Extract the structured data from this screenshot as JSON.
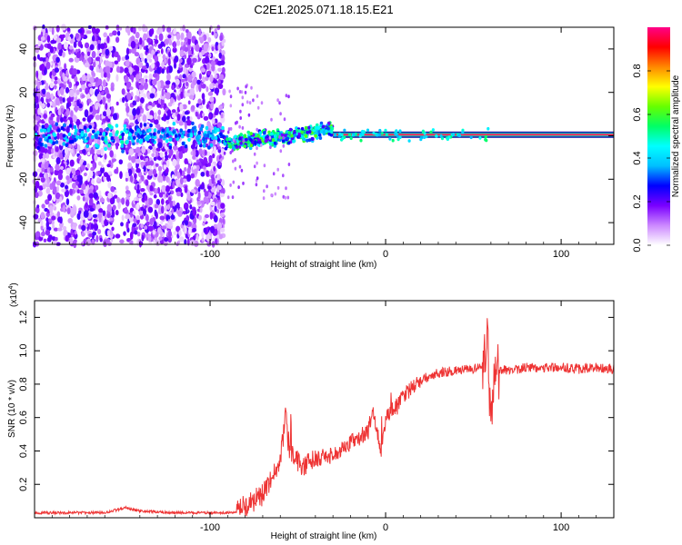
{
  "title": "C2E1.2025.071.18.15.E21",
  "chart_data": [
    {
      "type": "heatmap",
      "xlabel": "Height of straight line (km)",
      "ylabel": "Frequency (Hz)",
      "xlim": [
        -200,
        130
      ],
      "ylim": [
        -50,
        50
      ],
      "xticks": [
        -100,
        0,
        100
      ],
      "yticks": [
        -40,
        -20,
        0,
        20,
        40
      ],
      "colorbar": {
        "label": "Normalized spectral amplitude",
        "range": [
          0,
          1
        ],
        "ticks": [
          0.0,
          0.2,
          0.4,
          0.6,
          0.8
        ],
        "colors": [
          "#ffffff",
          "#cc88ff",
          "#7a00ff",
          "#0000ff",
          "#00bfff",
          "#00ffff",
          "#00ff66",
          "#66ff00",
          "#ffff00",
          "#ff8800",
          "#ff0000",
          "#ff0088"
        ]
      },
      "regions": [
        {
          "x": [
            -200,
            -92
          ],
          "amplitude_level": 0.15,
          "note": "noise"
        },
        {
          "x": [
            -92,
            -30
          ],
          "freq_hz": [
            -4,
            3
          ],
          "amplitude_level": 0.45
        },
        {
          "x": [
            -30,
            130
          ],
          "freq_hz": 0.5,
          "amplitude_level": 0.85
        }
      ]
    },
    {
      "type": "line",
      "xlabel": "Height of straight line (km)",
      "ylabel": "SNR (10 * v/v)",
      "y_multiplier": "(x10",
      "y_multiplier_exp": "4",
      "xlim": [
        -200,
        130
      ],
      "ylim": [
        0,
        1.3
      ],
      "xticks": [
        -100,
        0,
        100
      ],
      "yticks": [
        0.2,
        0.4,
        0.6,
        0.8,
        1.0,
        1.2
      ],
      "series": [
        {
          "color": "#ee3333",
          "x": [
            -200,
            -160,
            -148,
            -140,
            -120,
            -100,
            -85,
            -80,
            -75,
            -70,
            -65,
            -60,
            -57,
            -55,
            -50,
            -45,
            -40,
            -35,
            -30,
            -25,
            -20,
            -15,
            -10,
            -7,
            -5,
            -3,
            0,
            5,
            10,
            15,
            20,
            25,
            30,
            40,
            50,
            55,
            58,
            60,
            62,
            65,
            70,
            80,
            90,
            100,
            110,
            120,
            130
          ],
          "values": [
            0.03,
            0.03,
            0.06,
            0.04,
            0.03,
            0.03,
            0.03,
            0.07,
            0.1,
            0.14,
            0.22,
            0.35,
            0.6,
            0.42,
            0.33,
            0.32,
            0.34,
            0.37,
            0.37,
            0.42,
            0.45,
            0.48,
            0.52,
            0.65,
            0.55,
            0.38,
            0.6,
            0.66,
            0.72,
            0.78,
            0.82,
            0.85,
            0.87,
            0.88,
            0.89,
            0.9,
            1.1,
            0.58,
            0.9,
            0.89,
            0.88,
            0.9,
            0.9,
            0.9,
            0.89,
            0.9,
            0.89
          ]
        }
      ]
    }
  ]
}
